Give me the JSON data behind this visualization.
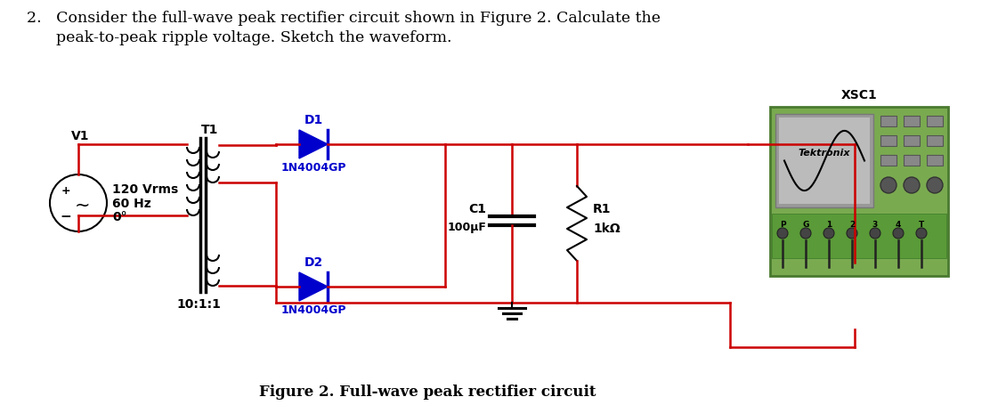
{
  "title_line1": "2.   Consider the full-wave peak rectifier circuit shown in Figure 2. Calculate the",
  "title_line2": "      peak-to-peak ripple voltage. Sketch the waveform.",
  "figure_caption": "Figure 2. Full-wave peak rectifier circuit",
  "bg_color": "#ffffff",
  "red": "#cc0000",
  "blue": "#0000cc",
  "black": "#000000",
  "osc_green": "#7aaa50",
  "osc_dark_green": "#4a7a30",
  "screen_gray": "#aaaaaa",
  "screen_inner": "#bbbbbb",
  "btn_gray": "#888888",
  "knob_gray": "#555555"
}
